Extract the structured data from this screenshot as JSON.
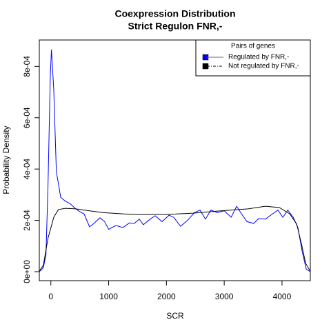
{
  "chart_data": {
    "type": "line",
    "title": "Coexpression Distribution",
    "subtitle": "Strict Regulon FNR,-",
    "x_label": "SCR",
    "y_label": "Probability Density",
    "legend_title": "Pairs of genes",
    "legend": "topright",
    "xlim": [
      -200,
      4490
    ],
    "ylim": [
      -3.5e-05,
      0.000903
    ],
    "xticks": [
      0,
      1000,
      2000,
      3000,
      4000
    ],
    "yticks": [
      {
        "value": 0,
        "label": "0e+00"
      },
      {
        "value": 0.0002,
        "label": "2e-04"
      },
      {
        "value": 0.0004,
        "label": "4e-04"
      },
      {
        "value": 0.0006,
        "label": "6e-04"
      },
      {
        "value": 0.0008,
        "label": "8e-04"
      }
    ],
    "series": [
      {
        "name": "Regulated by  FNR,-",
        "color": "#0000ff",
        "x": [
          -200,
          -130,
          -85,
          -50,
          -10,
          10,
          50,
          95,
          170,
          250,
          335,
          405,
          490,
          575,
          670,
          730,
          850,
          930,
          1000,
          1125,
          1245,
          1360,
          1445,
          1530,
          1600,
          1720,
          1805,
          1925,
          2045,
          2125,
          2245,
          2365,
          2485,
          2580,
          2675,
          2770,
          2880,
          3000,
          3120,
          3215,
          3300,
          3395,
          3510,
          3595,
          3715,
          3835,
          3930,
          4015,
          4100,
          4195,
          4275,
          4350,
          4420,
          4490
        ],
        "values": [
          0,
          1.6e-05,
          6.5e-05,
          0.00033,
          0.00076,
          0.000866,
          0.00071,
          0.00039,
          0.00029,
          0.000275,
          0.000265,
          0.00025,
          0.000235,
          0.000225,
          0.000175,
          0.000185,
          0.00021,
          0.000195,
          0.000165,
          0.00018,
          0.000172,
          0.00019,
          0.000188,
          0.000205,
          0.000183,
          0.000205,
          0.000218,
          0.000195,
          0.00022,
          0.000212,
          0.000177,
          0.0002,
          0.00023,
          0.00024,
          0.000205,
          0.00024,
          0.00023,
          0.000237,
          0.000212,
          0.000255,
          0.000225,
          0.000195,
          0.000188,
          0.000207,
          0.000205,
          0.000225,
          0.00024,
          0.000212,
          0.00024,
          0.000212,
          0.000172,
          7.8e-05,
          1e-05,
          0
        ]
      },
      {
        "name": "Not regulated by  FNR,-",
        "color": "#000000",
        "x": [
          -200,
          -130,
          -50,
          50,
          130,
          250,
          430,
          670,
          910,
          1270,
          1505,
          1985,
          2460,
          2940,
          3415,
          3715,
          3955,
          4135,
          4255,
          4340,
          4410,
          4490
        ],
        "values": [
          2e-06,
          2.5e-05,
          0.00013,
          0.000212,
          0.000242,
          0.000247,
          0.000245,
          0.000237,
          0.00023,
          0.000225,
          0.000223,
          0.000223,
          0.000228,
          0.000237,
          0.000245,
          0.000255,
          0.00025,
          0.000225,
          0.000185,
          0.000105,
          3.2e-05,
          2e-06
        ]
      }
    ]
  }
}
